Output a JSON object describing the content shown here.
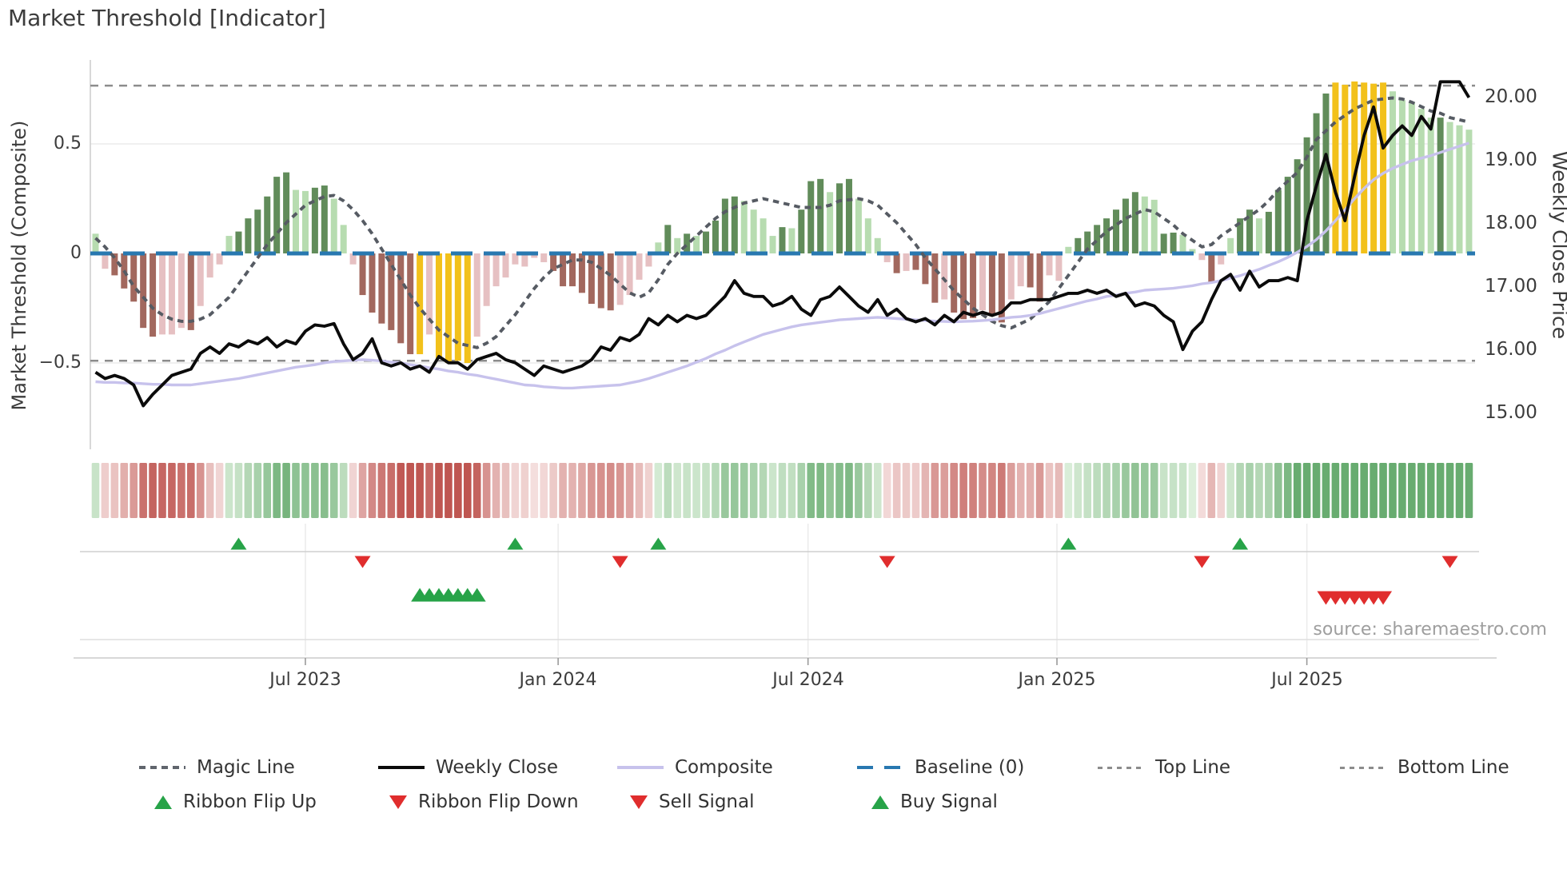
{
  "title": "Market Threshold [Indicator]",
  "source_note": "source: sharemaestro.com",
  "axes": {
    "left": {
      "title": "Market Threshold (Composite)",
      "tick_labels": [
        "0.5",
        "0",
        "−0.5"
      ]
    },
    "right": {
      "title": "Weekly Close Price",
      "tick_labels": [
        "20.00",
        "19.00",
        "18.00",
        "17.00",
        "16.00",
        "15.00"
      ]
    },
    "x": {
      "tick_labels": [
        "Jul 2023",
        "Jan 2024",
        "Jul 2024",
        "Jan 2025",
        "Jul 2025"
      ]
    }
  },
  "legend": {
    "row1": [
      {
        "label": "Magic Line",
        "swatch": "gray-dashed-line"
      },
      {
        "label": "Weekly Close",
        "swatch": "black-line"
      },
      {
        "label": "Composite",
        "swatch": "lavender-line"
      },
      {
        "label": "Baseline (0)",
        "swatch": "blue-dashed-line"
      },
      {
        "label": "Top Line",
        "swatch": "gray-dotted-line"
      },
      {
        "label": "Bottom Line",
        "swatch": "gray-dotted-line"
      }
    ],
    "row2": [
      {
        "label": "Ribbon Flip Up",
        "swatch": "green-up-triangle"
      },
      {
        "label": "Ribbon Flip Down",
        "swatch": "red-down-triangle"
      },
      {
        "label": "Sell Signal",
        "swatch": "red-down-triangle"
      },
      {
        "label": "Buy Signal",
        "swatch": "green-up-triangle"
      }
    ]
  },
  "colors": {
    "bars": {
      "dg": "#618c5a",
      "lg": "#b7dcb0",
      "yl": "#f2c11b",
      "dr": "#a2685e",
      "lp": "#e6c0c2"
    },
    "baseline": "#2878b0",
    "magic_line": "#565b63",
    "weekly_close": "#0b0b0b",
    "composite_line": "#c7c2ec",
    "threshold_lines": "#8c8c8c",
    "grid": "#ebebeb",
    "spine": "#cccccc",
    "buy_green": "#27a348",
    "sell_red": "#e02d2d",
    "ribbon_pos_low": [
      226,
      242,
      224
    ],
    "ribbon_pos_high": [
      104,
      172,
      112
    ],
    "ribbon_neg_low": [
      247,
      229,
      228
    ],
    "ribbon_neg_high": [
      191,
      86,
      81
    ]
  },
  "chart_data": {
    "type": "bar+line",
    "x_unit": "weekly",
    "n_weeks": 145,
    "x_tick_weeks": [
      22.0,
      48.5,
      74.7,
      100.8,
      127.0
    ],
    "x_tick_labels": [
      "Jul 2023",
      "Jan 2024",
      "Jul 2024",
      "Jan 2025",
      "Jul 2025"
    ],
    "left_axis": {
      "label": "Market Threshold (Composite)",
      "ticks": [
        0.5,
        0,
        -0.5
      ],
      "range": [
        -0.89,
        0.89
      ]
    },
    "right_axis": {
      "label": "Weekly Close Price",
      "ticks": [
        20,
        19,
        18,
        17,
        16,
        15
      ],
      "range": [
        14.46,
        20.59
      ]
    },
    "baseline": 0,
    "top_line": 0.766,
    "bottom_line": -0.49,
    "composite_bars": {
      "values": [
        0.09,
        -0.07,
        -0.1,
        -0.16,
        -0.22,
        -0.34,
        -0.38,
        -0.37,
        -0.37,
        -0.34,
        -0.35,
        -0.24,
        -0.11,
        -0.05,
        0.08,
        0.1,
        0.16,
        0.2,
        0.26,
        0.35,
        0.37,
        0.29,
        0.285,
        0.3,
        0.31,
        0.25,
        0.13,
        -0.05,
        -0.19,
        -0.27,
        -0.32,
        -0.35,
        -0.41,
        -0.46,
        -0.46,
        -0.37,
        -0.48,
        -0.5,
        -0.49,
        -0.5,
        -0.38,
        -0.24,
        -0.15,
        -0.11,
        -0.05,
        -0.06,
        -0.02,
        -0.04,
        -0.08,
        -0.15,
        -0.15,
        -0.18,
        -0.23,
        -0.25,
        -0.26,
        -0.235,
        -0.19,
        -0.12,
        -0.06,
        0.05,
        0.13,
        0.07,
        0.09,
        0.08,
        0.1,
        0.15,
        0.25,
        0.26,
        0.24,
        0.2,
        0.16,
        0.08,
        0.12,
        0.115,
        0.2,
        0.33,
        0.34,
        0.28,
        0.32,
        0.34,
        0.25,
        0.16,
        0.07,
        -0.04,
        -0.09,
        -0.08,
        -0.075,
        -0.14,
        -0.225,
        -0.21,
        -0.27,
        -0.3,
        -0.295,
        -0.26,
        -0.28,
        -0.315,
        -0.21,
        -0.15,
        -0.155,
        -0.22,
        -0.1,
        -0.125,
        0.03,
        0.07,
        0.1,
        0.13,
        0.16,
        0.2,
        0.25,
        0.28,
        0.26,
        0.245,
        0.09,
        0.095,
        0.085,
        0.02,
        -0.03,
        -0.135,
        -0.05,
        0.07,
        0.16,
        0.2,
        0.16,
        0.19,
        0.29,
        0.35,
        0.43,
        0.53,
        0.64,
        0.73,
        0.78,
        0.77,
        0.785,
        0.78,
        0.775,
        0.78,
        0.74,
        0.7,
        0.69,
        0.66,
        0.62,
        0.62,
        0.6,
        0.585,
        0.565
      ],
      "colors": [
        "lg",
        "lp",
        "dr",
        "dr",
        "dr",
        "dr",
        "dr",
        "lp",
        "lp",
        "lp",
        "dr",
        "lp",
        "lp",
        "lp",
        "lg",
        "dg",
        "dg",
        "dg",
        "dg",
        "dg",
        "dg",
        "lg",
        "lg",
        "dg",
        "dg",
        "lg",
        "lg",
        "lp",
        "dr",
        "dr",
        "dr",
        "dr",
        "dr",
        "dr",
        "yl",
        "lp",
        "yl",
        "yl",
        "yl",
        "yl",
        "lp",
        "lp",
        "lp",
        "lp",
        "lp",
        "lp",
        "lp",
        "lp",
        "dr",
        "dr",
        "dr",
        "dr",
        "dr",
        "dr",
        "dr",
        "lp",
        "lp",
        "lp",
        "lp",
        "lg",
        "dg",
        "lg",
        "dg",
        "lg",
        "dg",
        "dg",
        "dg",
        "dg",
        "lg",
        "lg",
        "lg",
        "lg",
        "dg",
        "lg",
        "dg",
        "dg",
        "dg",
        "lg",
        "dg",
        "dg",
        "lg",
        "lg",
        "lg",
        "lp",
        "dr",
        "lp",
        "dr",
        "dr",
        "dr",
        "lp",
        "dr",
        "dr",
        "dr",
        "lp",
        "dr",
        "dr",
        "lp",
        "lp",
        "dr",
        "dr",
        "lp",
        "lp",
        "lg",
        "dg",
        "dg",
        "dg",
        "dg",
        "dg",
        "dg",
        "dg",
        "lg",
        "lg",
        "dg",
        "dg",
        "lg",
        "lg",
        "lp",
        "dr",
        "lp",
        "lg",
        "dg",
        "dg",
        "lg",
        "dg",
        "dg",
        "dg",
        "dg",
        "dg",
        "dg",
        "dg",
        "yl",
        "yl",
        "yl",
        "yl",
        "yl",
        "yl",
        "lg",
        "lg",
        "lg",
        "lg",
        "lg",
        "dg",
        "lg",
        "lg",
        "lg"
      ]
    },
    "weekly_close": [
      15.65,
      15.55,
      15.6,
      15.55,
      15.45,
      15.12,
      15.3,
      15.45,
      15.6,
      15.65,
      15.7,
      15.95,
      16.05,
      15.95,
      16.1,
      16.05,
      16.15,
      16.1,
      16.2,
      16.05,
      16.15,
      16.1,
      16.3,
      16.4,
      16.38,
      16.42,
      16.1,
      15.85,
      15.95,
      16.18,
      15.8,
      15.75,
      15.8,
      15.7,
      15.75,
      15.65,
      15.9,
      15.8,
      15.8,
      15.7,
      15.85,
      15.9,
      15.95,
      15.85,
      15.8,
      15.7,
      15.6,
      15.75,
      15.7,
      15.65,
      15.7,
      15.75,
      15.85,
      16.05,
      16.0,
      16.2,
      16.15,
      16.25,
      16.5,
      16.4,
      16.55,
      16.45,
      16.55,
      16.5,
      16.55,
      16.7,
      16.85,
      17.1,
      16.9,
      16.85,
      16.85,
      16.7,
      16.75,
      16.85,
      16.65,
      16.55,
      16.8,
      16.85,
      17.0,
      16.85,
      16.7,
      16.6,
      16.8,
      16.55,
      16.65,
      16.5,
      16.45,
      16.5,
      16.4,
      16.55,
      16.45,
      16.6,
      16.55,
      16.6,
      16.55,
      16.6,
      16.75,
      16.75,
      16.8,
      16.8,
      16.8,
      16.85,
      16.9,
      16.9,
      16.95,
      16.9,
      16.95,
      16.85,
      16.9,
      16.7,
      16.75,
      16.7,
      16.55,
      16.45,
      16.01,
      16.3,
      16.45,
      16.8,
      17.1,
      17.2,
      16.95,
      17.25,
      17.0,
      17.1,
      17.1,
      17.15,
      17.1,
      18.05,
      18.6,
      19.1,
      18.5,
      18.05,
      18.75,
      19.4,
      19.85,
      19.2,
      19.4,
      19.55,
      19.4,
      19.7,
      19.5,
      20.25,
      20.25,
      20.25,
      20.0
    ],
    "magic_line": [
      0.07,
      0.03,
      -0.02,
      -0.08,
      -0.15,
      -0.2,
      -0.25,
      -0.28,
      -0.3,
      -0.31,
      -0.31,
      -0.3,
      -0.28,
      -0.24,
      -0.2,
      -0.14,
      -0.08,
      -0.02,
      0.04,
      0.09,
      0.14,
      0.18,
      0.22,
      0.24,
      0.26,
      0.265,
      0.24,
      0.2,
      0.15,
      0.09,
      0.02,
      -0.05,
      -0.12,
      -0.19,
      -0.25,
      -0.3,
      -0.35,
      -0.38,
      -0.41,
      -0.42,
      -0.43,
      -0.41,
      -0.38,
      -0.33,
      -0.28,
      -0.22,
      -0.16,
      -0.11,
      -0.07,
      -0.05,
      -0.03,
      -0.03,
      -0.04,
      -0.07,
      -0.1,
      -0.14,
      -0.18,
      -0.2,
      -0.18,
      -0.12,
      -0.05,
      0.0,
      0.04,
      0.08,
      0.12,
      0.16,
      0.19,
      0.21,
      0.23,
      0.24,
      0.25,
      0.24,
      0.23,
      0.22,
      0.21,
      0.21,
      0.21,
      0.22,
      0.24,
      0.245,
      0.25,
      0.24,
      0.22,
      0.18,
      0.14,
      0.09,
      0.04,
      -0.02,
      -0.07,
      -0.12,
      -0.17,
      -0.21,
      -0.25,
      -0.28,
      -0.31,
      -0.33,
      -0.34,
      -0.32,
      -0.3,
      -0.26,
      -0.22,
      -0.16,
      -0.1,
      -0.04,
      0.02,
      0.06,
      0.1,
      0.13,
      0.16,
      0.18,
      0.2,
      0.19,
      0.16,
      0.13,
      0.09,
      0.06,
      0.03,
      0.04,
      0.08,
      0.11,
      0.14,
      0.17,
      0.2,
      0.24,
      0.29,
      0.33,
      0.37,
      0.44,
      0.52,
      0.56,
      0.6,
      0.63,
      0.66,
      0.68,
      0.7,
      0.705,
      0.71,
      0.705,
      0.69,
      0.67,
      0.65,
      0.64,
      0.62,
      0.61,
      0.6
    ],
    "composite_line": [
      15.5,
      15.49,
      15.49,
      15.48,
      15.48,
      15.47,
      15.46,
      15.46,
      15.45,
      15.45,
      15.45,
      15.47,
      15.49,
      15.51,
      15.53,
      15.55,
      15.58,
      15.61,
      15.64,
      15.67,
      15.7,
      15.73,
      15.75,
      15.77,
      15.8,
      15.82,
      15.83,
      15.84,
      15.85,
      15.84,
      15.83,
      15.81,
      15.8,
      15.77,
      15.75,
      15.72,
      15.7,
      15.67,
      15.65,
      15.62,
      15.6,
      15.57,
      15.54,
      15.51,
      15.48,
      15.45,
      15.44,
      15.42,
      15.41,
      15.4,
      15.4,
      15.41,
      15.42,
      15.43,
      15.44,
      15.45,
      15.48,
      15.51,
      15.55,
      15.6,
      15.65,
      15.7,
      15.75,
      15.81,
      15.87,
      15.94,
      16.0,
      16.07,
      16.13,
      16.19,
      16.25,
      16.29,
      16.33,
      16.37,
      16.4,
      16.42,
      16.44,
      16.46,
      16.48,
      16.49,
      16.5,
      16.51,
      16.52,
      16.51,
      16.5,
      16.49,
      16.48,
      16.47,
      16.46,
      16.455,
      16.45,
      16.455,
      16.46,
      16.47,
      16.48,
      16.5,
      16.52,
      16.53,
      16.55,
      16.58,
      16.62,
      16.66,
      16.7,
      16.74,
      16.78,
      16.81,
      16.85,
      16.87,
      16.9,
      16.92,
      16.95,
      16.96,
      16.97,
      16.98,
      17.0,
      17.02,
      17.05,
      17.07,
      17.1,
      17.14,
      17.18,
      17.23,
      17.28,
      17.34,
      17.4,
      17.47,
      17.55,
      17.64,
      17.75,
      17.89,
      18.05,
      18.22,
      18.4,
      18.56,
      18.7,
      18.8,
      18.88,
      18.94,
      19.0,
      19.04,
      19.08,
      19.13,
      19.18,
      19.23,
      19.28
    ],
    "ribbon": {
      "note": "heat strip shading derived from composite_bars.values (green positive, red negative, intensity = magnitude)"
    },
    "signals": {
      "ribbon_flip_up_weeks": [
        15,
        44,
        59,
        102,
        120
      ],
      "ribbon_flip_down_weeks": [
        28,
        55,
        83,
        116,
        142
      ],
      "buy_signal_weeks": [
        34,
        35,
        36,
        37,
        38,
        39,
        40
      ],
      "sell_signal_weeks": [
        129,
        130,
        131,
        132,
        133,
        134,
        135
      ]
    }
  }
}
